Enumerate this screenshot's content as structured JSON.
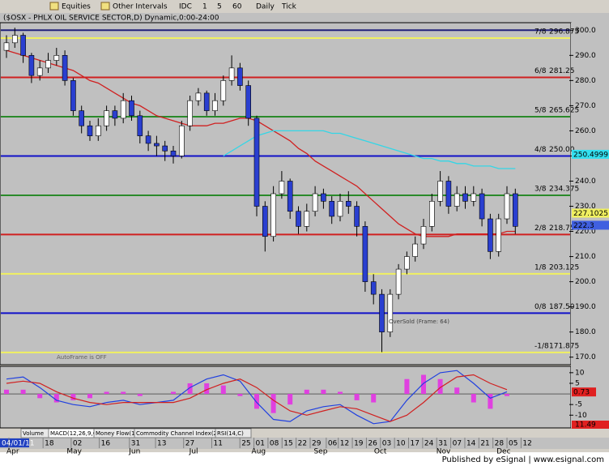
{
  "toolbar": {
    "items": [
      "Equities",
      "Other Intervals",
      "IDC",
      "1",
      "5",
      "60",
      "Daily",
      "Tick"
    ]
  },
  "footer": "Published by eSignal | www.esignal.com",
  "tabs": [
    "Volume",
    "MACD(12,26,9,C)",
    "Money Flow(14)",
    "Commodity Channel Index(23,C)",
    "RSI(14,C)"
  ],
  "chart_data": [
    {
      "type": "candlestick",
      "title": "($OSX - PHLX OIL SERVICE SECTOR,D) Dynamic,0:00-24:00",
      "open": [
        292,
        295,
        298,
        290,
        282,
        285,
        288,
        290,
        280,
        268,
        262,
        258,
        262,
        268,
        265,
        272,
        266,
        258,
        255,
        254,
        252,
        250,
        262,
        272,
        275,
        268,
        272,
        280,
        285,
        278,
        265,
        230,
        218,
        235,
        240,
        228,
        222,
        228,
        235,
        232,
        226,
        232,
        230,
        222,
        200,
        195,
        180,
        195,
        205,
        210,
        215,
        222,
        232,
        240,
        230,
        235,
        232,
        235,
        225,
        212,
        225,
        235
      ],
      "high": [
        298,
        301,
        299,
        291,
        288,
        291,
        293,
        292,
        281,
        270,
        264,
        265,
        270,
        270,
        275,
        274,
        268,
        260,
        258,
        256,
        254,
        264,
        274,
        277,
        276,
        275,
        282,
        290,
        287,
        280,
        266,
        232,
        238,
        244,
        241,
        230,
        231,
        238,
        237,
        234,
        235,
        236,
        232,
        224,
        203,
        197,
        197,
        207,
        212,
        218,
        225,
        235,
        244,
        242,
        238,
        238,
        238,
        237,
        227,
        227,
        238,
        237
      ],
      "low": [
        289,
        293,
        287,
        279,
        280,
        283,
        286,
        278,
        266,
        259,
        256,
        256,
        260,
        262,
        263,
        264,
        255,
        252,
        250,
        248,
        247,
        249,
        260,
        270,
        266,
        266,
        270,
        278,
        276,
        262,
        226,
        212,
        216,
        233,
        225,
        219,
        220,
        226,
        229,
        223,
        224,
        227,
        218,
        196,
        191,
        172,
        178,
        193,
        203,
        208,
        213,
        220,
        230,
        227,
        228,
        229,
        230,
        222,
        209,
        210,
        223,
        219
      ],
      "close": [
        295,
        298,
        290,
        282,
        285,
        288,
        290,
        280,
        268,
        262,
        258,
        262,
        268,
        265,
        272,
        266,
        258,
        255,
        254,
        252,
        250,
        262,
        272,
        275,
        268,
        272,
        280,
        285,
        278,
        265,
        230,
        218,
        235,
        240,
        228,
        222,
        228,
        235,
        232,
        226,
        232,
        230,
        222,
        200,
        195,
        180,
        195,
        205,
        210,
        215,
        222,
        232,
        240,
        230,
        235,
        232,
        235,
        225,
        212,
        225,
        235,
        222
      ],
      "up_color": "#ffffff",
      "down_color": "#2a3fd0",
      "series": [
        {
          "color": "#d02020",
          "values": [
            292,
            291,
            290,
            289,
            288,
            287,
            286,
            285,
            284,
            282,
            280,
            279,
            277,
            275,
            273,
            271,
            270,
            268,
            266,
            265,
            264,
            263,
            262,
            262,
            262,
            263,
            263,
            264,
            265,
            265,
            264,
            262,
            260,
            258,
            256,
            253,
            251,
            248,
            246,
            244,
            242,
            240,
            238,
            235,
            232,
            229,
            226,
            223,
            221,
            219,
            218,
            218,
            218,
            218,
            219,
            219,
            219,
            219,
            219,
            219,
            220,
            220
          ]
        },
        {
          "color": "#33d6e6",
          "values": [
            null,
            null,
            null,
            null,
            null,
            null,
            null,
            null,
            null,
            null,
            null,
            null,
            null,
            null,
            null,
            null,
            null,
            null,
            null,
            null,
            null,
            null,
            null,
            null,
            null,
            null,
            250,
            252,
            254,
            256,
            258,
            259,
            260,
            260,
            260,
            260,
            260,
            260,
            260,
            259,
            259,
            258,
            257,
            256,
            255,
            254,
            253,
            252,
            251,
            250,
            249,
            249,
            248,
            248,
            247,
            247,
            246,
            246,
            246,
            245,
            245,
            245
          ]
        }
      ],
      "ylim": [
        167,
        303
      ],
      "yticks": [
        {
          "value": 300,
          "label": "300.0"
        },
        {
          "value": 290,
          "label": "290.0"
        },
        {
          "value": 280,
          "label": "280.0"
        },
        {
          "value": 270,
          "label": "270.0"
        },
        {
          "value": 260,
          "label": "260.0"
        },
        {
          "value": 250,
          "label": "250.0"
        },
        {
          "value": 240,
          "label": "240.0"
        },
        {
          "value": 230,
          "label": "230.0"
        },
        {
          "value": 220,
          "label": "220.0"
        },
        {
          "value": 210,
          "label": "210.0"
        },
        {
          "value": 200,
          "label": "200.0"
        },
        {
          "value": 190,
          "label": "190.0"
        },
        {
          "value": 180,
          "label": "180.0"
        },
        {
          "value": 170,
          "label": "170.0"
        }
      ],
      "murrey": [
        {
          "value": 300,
          "color": "#20207a"
        },
        {
          "label": "7/8",
          "value": 296.875,
          "value_label": "296.875",
          "color": "#f0f060"
        },
        {
          "label": "6/8",
          "value": 281.25,
          "value_label": "281.25",
          "color": "#d02020"
        },
        {
          "label": "5/8",
          "value": 265.625,
          "value_label": "265.625",
          "color": "#2a8a2a"
        },
        {
          "label": "4/8",
          "value": 250,
          "value_label": "250.00",
          "color": "#1010c8"
        },
        {
          "label": "3/8",
          "value": 234.375,
          "value_label": "234.375",
          "color": "#2a8a2a"
        },
        {
          "label": "2/8",
          "value": 218.75,
          "value_label": "218.75",
          "color": "#d02020"
        },
        {
          "label": "1/8",
          "value": 203.125,
          "value_label": "203.125",
          "color": "#f0f060"
        },
        {
          "label": "0/8",
          "value": 187.5,
          "value_label": "187.50",
          "color": "#1010c8"
        },
        {
          "label": "-1/8",
          "value": 171.875,
          "value_label": "171.875",
          "color": "#f0f060"
        }
      ],
      "price_tags": [
        {
          "value": 250.4999,
          "label": "250.4999",
          "color": "#33e0f0"
        },
        {
          "value": 227.1025,
          "label": "227.1025",
          "color": "#f0f060"
        },
        {
          "value": 222.3,
          "label": "222.3",
          "color": "#4060e0"
        }
      ],
      "annotations": [
        "OverSold (Frame: 64)",
        "AutoFrame is OFF"
      ],
      "x_labels": [
        "04/01/11",
        "18",
        "02",
        "16",
        "31",
        "13",
        "27",
        "11",
        "25",
        "01",
        "08",
        "15",
        "22",
        "29",
        "06",
        "12",
        "19",
        "26",
        "03",
        "10",
        "17",
        "24",
        "31",
        "07",
        "14",
        "21",
        "28",
        "05",
        "12"
      ],
      "month_labels": [
        "Apr",
        "May",
        "Jun",
        "Jul",
        "Aug",
        "Sep",
        "Oct",
        "Nov",
        "Dec"
      ]
    },
    {
      "type": "macd",
      "macd": {
        "color": "#2040e0",
        "values": [
          7,
          8,
          3,
          -3,
          -5,
          -6,
          -4,
          -3,
          -5,
          -4,
          -3,
          3,
          7,
          9,
          6,
          -4,
          -12,
          -13,
          -8,
          -6,
          -5,
          -10,
          -14,
          -13,
          -3,
          5,
          10,
          11,
          5,
          -2,
          1
        ]
      },
      "signal": {
        "color": "#d02020",
        "values": [
          5,
          6,
          5,
          1,
          -2,
          -4,
          -5,
          -4,
          -4,
          -4,
          -4,
          -2,
          2,
          5,
          7,
          3,
          -3,
          -8,
          -10,
          -8,
          -6,
          -7,
          -10,
          -13,
          -10,
          -4,
          3,
          8,
          9,
          5,
          2
        ]
      },
      "histogram": {
        "color": "#e040e0",
        "values": [
          2,
          2,
          -2,
          -4,
          -3,
          -2,
          1,
          1,
          -1,
          0,
          1,
          5,
          5,
          4,
          -1,
          -7,
          -9,
          -5,
          2,
          2,
          1,
          -3,
          -4,
          0,
          7,
          9,
          7,
          3,
          -4,
          -7,
          -1
        ]
      },
      "ylim": [
        -16,
        13
      ],
      "yticks": [
        10,
        5,
        -5,
        -10
      ],
      "tags": [
        {
          "value": 0.73,
          "label": "0.73",
          "color": "#e02020"
        }
      ],
      "status": {
        "label": "11.49",
        "color": "#e02020"
      }
    }
  ]
}
